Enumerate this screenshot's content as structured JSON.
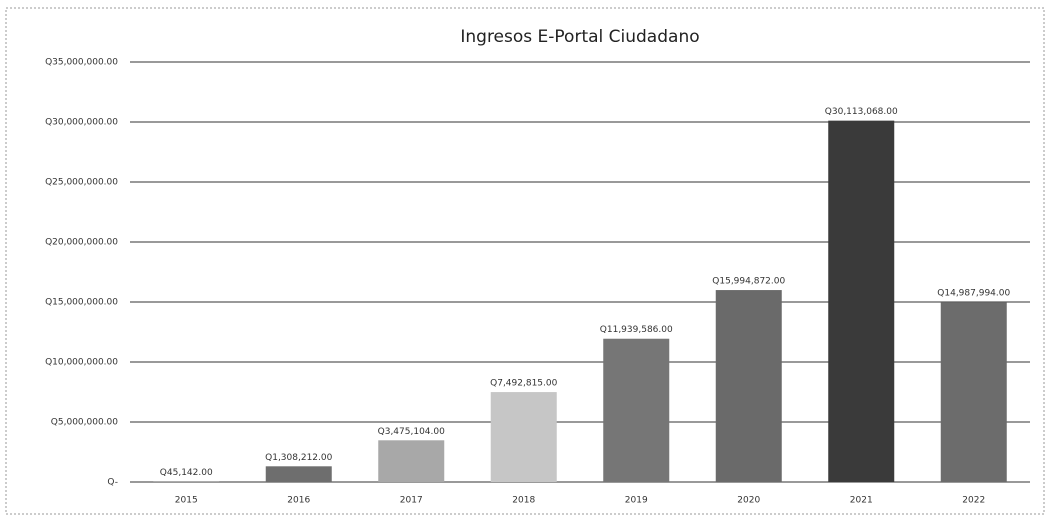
{
  "chart_data": {
    "type": "bar",
    "title": "Ingresos E-Portal Ciudadano",
    "categories": [
      "2015",
      "2016",
      "2017",
      "2018",
      "2019",
      "2020",
      "2021",
      "2022"
    ],
    "values": [
      45142,
      1308212,
      3475104,
      7492815,
      11939586,
      15994872,
      30113068,
      14987994
    ],
    "value_labels": [
      "Q45,142.00",
      "Q1,308,212.00",
      "Q3,475,104.00",
      "Q7,492,815.00",
      "Q11,939,586.00",
      "Q15,994,872.00",
      "Q30,113,068.00",
      "Q14,987,994.00"
    ],
    "colors": [
      "#666666",
      "#6e6e6e",
      "#a8a8a8",
      "#c6c6c6",
      "#767676",
      "#6a6a6a",
      "#3a3a3a",
      "#6c6c6c"
    ],
    "ylim": [
      0,
      35000000
    ],
    "yticks": [
      {
        "value": 0,
        "label": "Q-"
      },
      {
        "value": 5000000,
        "label": "Q5,000,000.00"
      },
      {
        "value": 10000000,
        "label": "Q10,000,000.00"
      },
      {
        "value": 15000000,
        "label": "Q15,000,000.00"
      },
      {
        "value": 20000000,
        "label": "Q20,000,000.00"
      },
      {
        "value": 25000000,
        "label": "Q25,000,000.00"
      },
      {
        "value": 30000000,
        "label": "Q30,000,000.00"
      },
      {
        "value": 35000000,
        "label": "Q35,000,000.00"
      }
    ],
    "grid": true
  }
}
